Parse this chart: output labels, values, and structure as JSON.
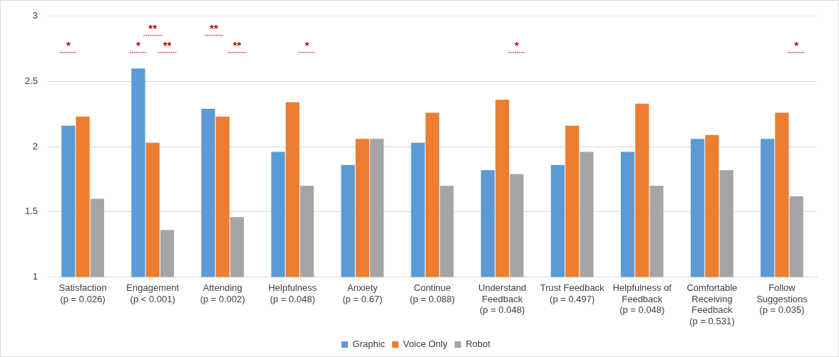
{
  "chart_data": {
    "type": "bar",
    "categories": [
      "Satisfaction\n(p = 0.026)",
      "Engagement\n(p < 0.001)",
      "Attending\n(p = 0.002)",
      "Helpfulness\n(p = 0.048)",
      "Anxiety\n(p = 0.67)",
      "Continue\n(p = 0.088)",
      "Understand\nFeedback\n(p = 0.048)",
      "Trust Feedback\n(p = 0.497)",
      "Helpfulness of\nFeedback\n(p = 0.048)",
      "Comfortable\nReceiving\nFeedback\n(p = 0.531)",
      "Follow\nSuggestions\n(p = 0.035)"
    ],
    "series": [
      {
        "name": "Graphic",
        "color": "#5b9bd5",
        "values": [
          2.16,
          2.6,
          2.29,
          1.96,
          1.86,
          2.03,
          1.82,
          1.86,
          1.96,
          2.06,
          2.06
        ]
      },
      {
        "name": "Voice Only",
        "color": "#ed7d31",
        "values": [
          2.23,
          2.03,
          2.23,
          2.34,
          2.06,
          2.26,
          2.36,
          2.16,
          2.33,
          2.09,
          2.26
        ]
      },
      {
        "name": "Robot",
        "color": "#a5a5a5",
        "values": [
          1.6,
          1.36,
          1.46,
          1.7,
          2.06,
          1.7,
          1.79,
          1.96,
          1.7,
          1.82,
          1.62
        ]
      }
    ],
    "ylim": [
      1,
      3
    ],
    "yticks": [
      1,
      1.5,
      2,
      2.5,
      3
    ],
    "grid": "y",
    "legend": "bottom",
    "annotations": [
      "*",
      "**",
      "*",
      "**",
      "**",
      "**",
      "*",
      "*",
      "*"
    ]
  }
}
